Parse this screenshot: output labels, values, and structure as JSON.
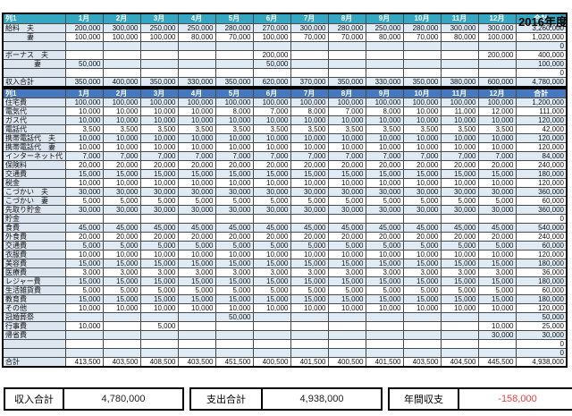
{
  "title": "2016年度",
  "columns": [
    "列1",
    "1月",
    "2月",
    "3月",
    "4月",
    "5月",
    "6月",
    "7月",
    "8月",
    "9月",
    "10月",
    "11月",
    "12月",
    "合計"
  ],
  "colors": {
    "income_header": "#35a7c2",
    "expense_header": "#4678be",
    "band": "#deebf5",
    "label_column": "#dce6f1",
    "negative": "#f0413b"
  },
  "income": {
    "rows": [
      {
        "label": "給料　夫",
        "values": [
          "200,000",
          "300,000",
          "250,000",
          "250,000",
          "280,000",
          "270,000",
          "300,000",
          "280,000",
          "250,000",
          "280,000",
          "300,000",
          "300,000"
        ],
        "total": "3,260,000"
      },
      {
        "label": "　　　妻",
        "values": [
          "100,000",
          "100,000",
          "100,000",
          "80,000",
          "70,000",
          "100,000",
          "70,000",
          "70,000",
          "80,000",
          "70,000",
          "80,000",
          "100,000"
        ],
        "total": "1,020,000"
      },
      {
        "label": "",
        "values": [
          "",
          "",
          "",
          "",
          "",
          "",
          "",
          "",
          "",
          "",
          "",
          ""
        ],
        "total": "0"
      },
      {
        "label": "ボーナス　夫",
        "values": [
          "",
          "",
          "",
          "",
          "",
          "200,000",
          "",
          "",
          "",
          "",
          "",
          "200,000"
        ],
        "total": "400,000"
      },
      {
        "label": "　　　　妻",
        "values": [
          "50,000",
          "",
          "",
          "",
          "",
          "50,000",
          "",
          "",
          "",
          "",
          "",
          ""
        ],
        "total": "100,000"
      },
      {
        "label": "",
        "values": [
          "",
          "",
          "",
          "",
          "",
          "",
          "",
          "",
          "",
          "",
          "",
          ""
        ],
        "total": "0"
      },
      {
        "label": "収入合計",
        "values": [
          "350,000",
          "400,000",
          "350,000",
          "330,000",
          "350,000",
          "620,000",
          "370,000",
          "350,000",
          "330,000",
          "350,000",
          "380,000",
          "600,000"
        ],
        "total": "4,780,000"
      }
    ]
  },
  "expenses": {
    "rows": [
      {
        "label": "住宅費",
        "values": [
          "100,000",
          "100,000",
          "100,000",
          "100,000",
          "100,000",
          "100,000",
          "100,000",
          "100,000",
          "100,000",
          "100,000",
          "100,000",
          "100,000"
        ],
        "total": "1,200,000"
      },
      {
        "label": "電気代",
        "values": [
          "10,000",
          "10,000",
          "10,000",
          "10,000",
          "8,000",
          "7,000",
          "8,000",
          "7,000",
          "8,000",
          "10,000",
          "11,000",
          "12,000"
        ],
        "total": "111,000"
      },
      {
        "label": "ガス代",
        "values": [
          "10,000",
          "10,000",
          "10,000",
          "10,000",
          "10,000",
          "10,000",
          "10,000",
          "10,000",
          "10,000",
          "10,000",
          "10,000",
          "10,000"
        ],
        "total": "120,000"
      },
      {
        "label": "電話代",
        "values": [
          "3,500",
          "3,500",
          "3,500",
          "3,500",
          "3,500",
          "3,500",
          "3,500",
          "3,500",
          "3,500",
          "3,500",
          "3,500",
          "3,500"
        ],
        "total": "42,000"
      },
      {
        "label": "携帯電話代　夫",
        "values": [
          "10,000",
          "10,000",
          "10,000",
          "10,000",
          "10,000",
          "10,000",
          "10,000",
          "10,000",
          "10,000",
          "10,000",
          "10,000",
          "10,000"
        ],
        "total": "120,000"
      },
      {
        "label": "携帯電話代　妻",
        "values": [
          "10,000",
          "10,000",
          "10,000",
          "10,000",
          "10,000",
          "10,000",
          "10,000",
          "10,000",
          "10,000",
          "10,000",
          "10,000",
          "10,000"
        ],
        "total": "120,000"
      },
      {
        "label": "インターネット代",
        "values": [
          "7,000",
          "7,000",
          "7,000",
          "7,000",
          "7,000",
          "7,000",
          "7,000",
          "7,000",
          "7,000",
          "7,000",
          "7,000",
          "7,000"
        ],
        "total": "84,000"
      },
      {
        "label": "保険料",
        "values": [
          "20,000",
          "20,000",
          "20,000",
          "20,000",
          "20,000",
          "20,000",
          "20,000",
          "20,000",
          "20,000",
          "20,000",
          "20,000",
          "20,000"
        ],
        "total": "240,000"
      },
      {
        "label": "交通費",
        "values": [
          "15,000",
          "15,000",
          "15,000",
          "15,000",
          "15,000",
          "15,000",
          "15,000",
          "15,000",
          "15,000",
          "15,000",
          "15,000",
          "15,000"
        ],
        "total": "180,000"
      },
      {
        "label": "税金",
        "values": [
          "10,000",
          "10,000",
          "10,000",
          "10,000",
          "10,000",
          "10,000",
          "10,000",
          "10,000",
          "10,000",
          "10,000",
          "10,000",
          "10,000"
        ],
        "total": "120,000"
      },
      {
        "label": "こづかい　夫",
        "values": [
          "30,000",
          "30,000",
          "30,000",
          "30,000",
          "30,000",
          "30,000",
          "30,000",
          "30,000",
          "30,000",
          "30,000",
          "30,000",
          "30,000"
        ],
        "total": "360,000"
      },
      {
        "label": "こづかい　妻",
        "values": [
          "5,000",
          "5,000",
          "5,000",
          "5,000",
          "5,000",
          "5,000",
          "5,000",
          "5,000",
          "5,000",
          "5,000",
          "5,000",
          "5,000"
        ],
        "total": "60,000"
      },
      {
        "label": "先取り貯金",
        "values": [
          "30,000",
          "30,000",
          "30,000",
          "30,000",
          "30,000",
          "30,000",
          "30,000",
          "30,000",
          "30,000",
          "30,000",
          "30,000",
          "30,000"
        ],
        "total": "360,000"
      },
      {
        "label": "貯金",
        "values": [
          "",
          "",
          "",
          "",
          "",
          "",
          "",
          "",
          "",
          "",
          "",
          ""
        ],
        "total": "0"
      },
      {
        "label": "食費",
        "values": [
          "45,000",
          "45,000",
          "45,000",
          "45,000",
          "45,000",
          "45,000",
          "45,000",
          "45,000",
          "45,000",
          "45,000",
          "45,000",
          "45,000"
        ],
        "total": "540,000"
      },
      {
        "label": "外食費",
        "values": [
          "20,000",
          "20,000",
          "20,000",
          "20,000",
          "20,000",
          "20,000",
          "20,000",
          "20,000",
          "20,000",
          "20,000",
          "20,000",
          "20,000"
        ],
        "total": "240,000"
      },
      {
        "label": "交通費",
        "values": [
          "5,000",
          "5,000",
          "5,000",
          "5,000",
          "5,000",
          "5,000",
          "5,000",
          "5,000",
          "5,000",
          "5,000",
          "5,000",
          "5,000"
        ],
        "total": "60,000"
      },
      {
        "label": "衣服費",
        "values": [
          "10,000",
          "10,000",
          "10,000",
          "10,000",
          "10,000",
          "10,000",
          "10,000",
          "10,000",
          "10,000",
          "10,000",
          "10,000",
          "10,000"
        ],
        "total": "120,000"
      },
      {
        "label": "美容費",
        "values": [
          "15,000",
          "15,000",
          "15,000",
          "15,000",
          "15,000",
          "15,000",
          "15,000",
          "15,000",
          "15,000",
          "15,000",
          "15,000",
          "15,000"
        ],
        "total": "180,000"
      },
      {
        "label": "医療費",
        "values": [
          "3,000",
          "3,000",
          "3,000",
          "3,000",
          "3,000",
          "3,000",
          "3,000",
          "3,000",
          "3,000",
          "3,000",
          "3,000",
          "3,000"
        ],
        "total": "36,000"
      },
      {
        "label": "レジャー費",
        "values": [
          "15,000",
          "15,000",
          "15,000",
          "15,000",
          "15,000",
          "15,000",
          "15,000",
          "15,000",
          "15,000",
          "15,000",
          "15,000",
          "15,000"
        ],
        "total": "180,000"
      },
      {
        "label": "生活雑貨費",
        "values": [
          "5,000",
          "5,000",
          "5,000",
          "5,000",
          "5,000",
          "5,000",
          "5,000",
          "5,000",
          "5,000",
          "5,000",
          "5,000",
          "5,000"
        ],
        "total": "60,000"
      },
      {
        "label": "教育費",
        "values": [
          "15,000",
          "15,000",
          "15,000",
          "15,000",
          "15,000",
          "15,000",
          "15,000",
          "15,000",
          "15,000",
          "15,000",
          "15,000",
          "15,000"
        ],
        "total": "180,000"
      },
      {
        "label": "その他",
        "values": [
          "10,000",
          "10,000",
          "10,000",
          "10,000",
          "10,000",
          "10,000",
          "10,000",
          "10,000",
          "10,000",
          "10,000",
          "10,000",
          "10,000"
        ],
        "total": "120,000"
      },
      {
        "label": "冠婚葬祭",
        "values": [
          "",
          "",
          "",
          "",
          "50,000",
          "",
          "",
          "",
          "",
          "",
          "",
          ""
        ],
        "total": "50,000"
      },
      {
        "label": "行事費",
        "values": [
          "10,000",
          "",
          "5,000",
          "",
          "",
          "",
          "",
          "",
          "",
          "",
          "",
          "10,000"
        ],
        "total": "25,000"
      },
      {
        "label": "帰省費",
        "values": [
          "",
          "",
          "",
          "",
          "",
          "",
          "",
          "",
          "",
          "",
          "",
          "30,000"
        ],
        "total": "30,000"
      },
      {
        "label": "",
        "values": [
          "",
          "",
          "",
          "",
          "",
          "",
          "",
          "",
          "",
          "",
          "",
          ""
        ],
        "total": "0"
      },
      {
        "label": "",
        "values": [
          "",
          "",
          "",
          "",
          "",
          "",
          "",
          "",
          "",
          "",
          "",
          ""
        ],
        "total": "0"
      },
      {
        "label": "合計",
        "values": [
          "413,500",
          "403,500",
          "408,500",
          "403,500",
          "451,500",
          "400,500",
          "401,500",
          "400,500",
          "401,500",
          "403,500",
          "404,500",
          "445,500"
        ],
        "total": "4,938,000"
      }
    ]
  },
  "summary": {
    "income_label": "収入合計",
    "income_value": "4,780,000",
    "expense_label": "支出合計",
    "expense_value": "4,938,000",
    "balance_label": "年間収支",
    "balance_value": "-158,000"
  }
}
